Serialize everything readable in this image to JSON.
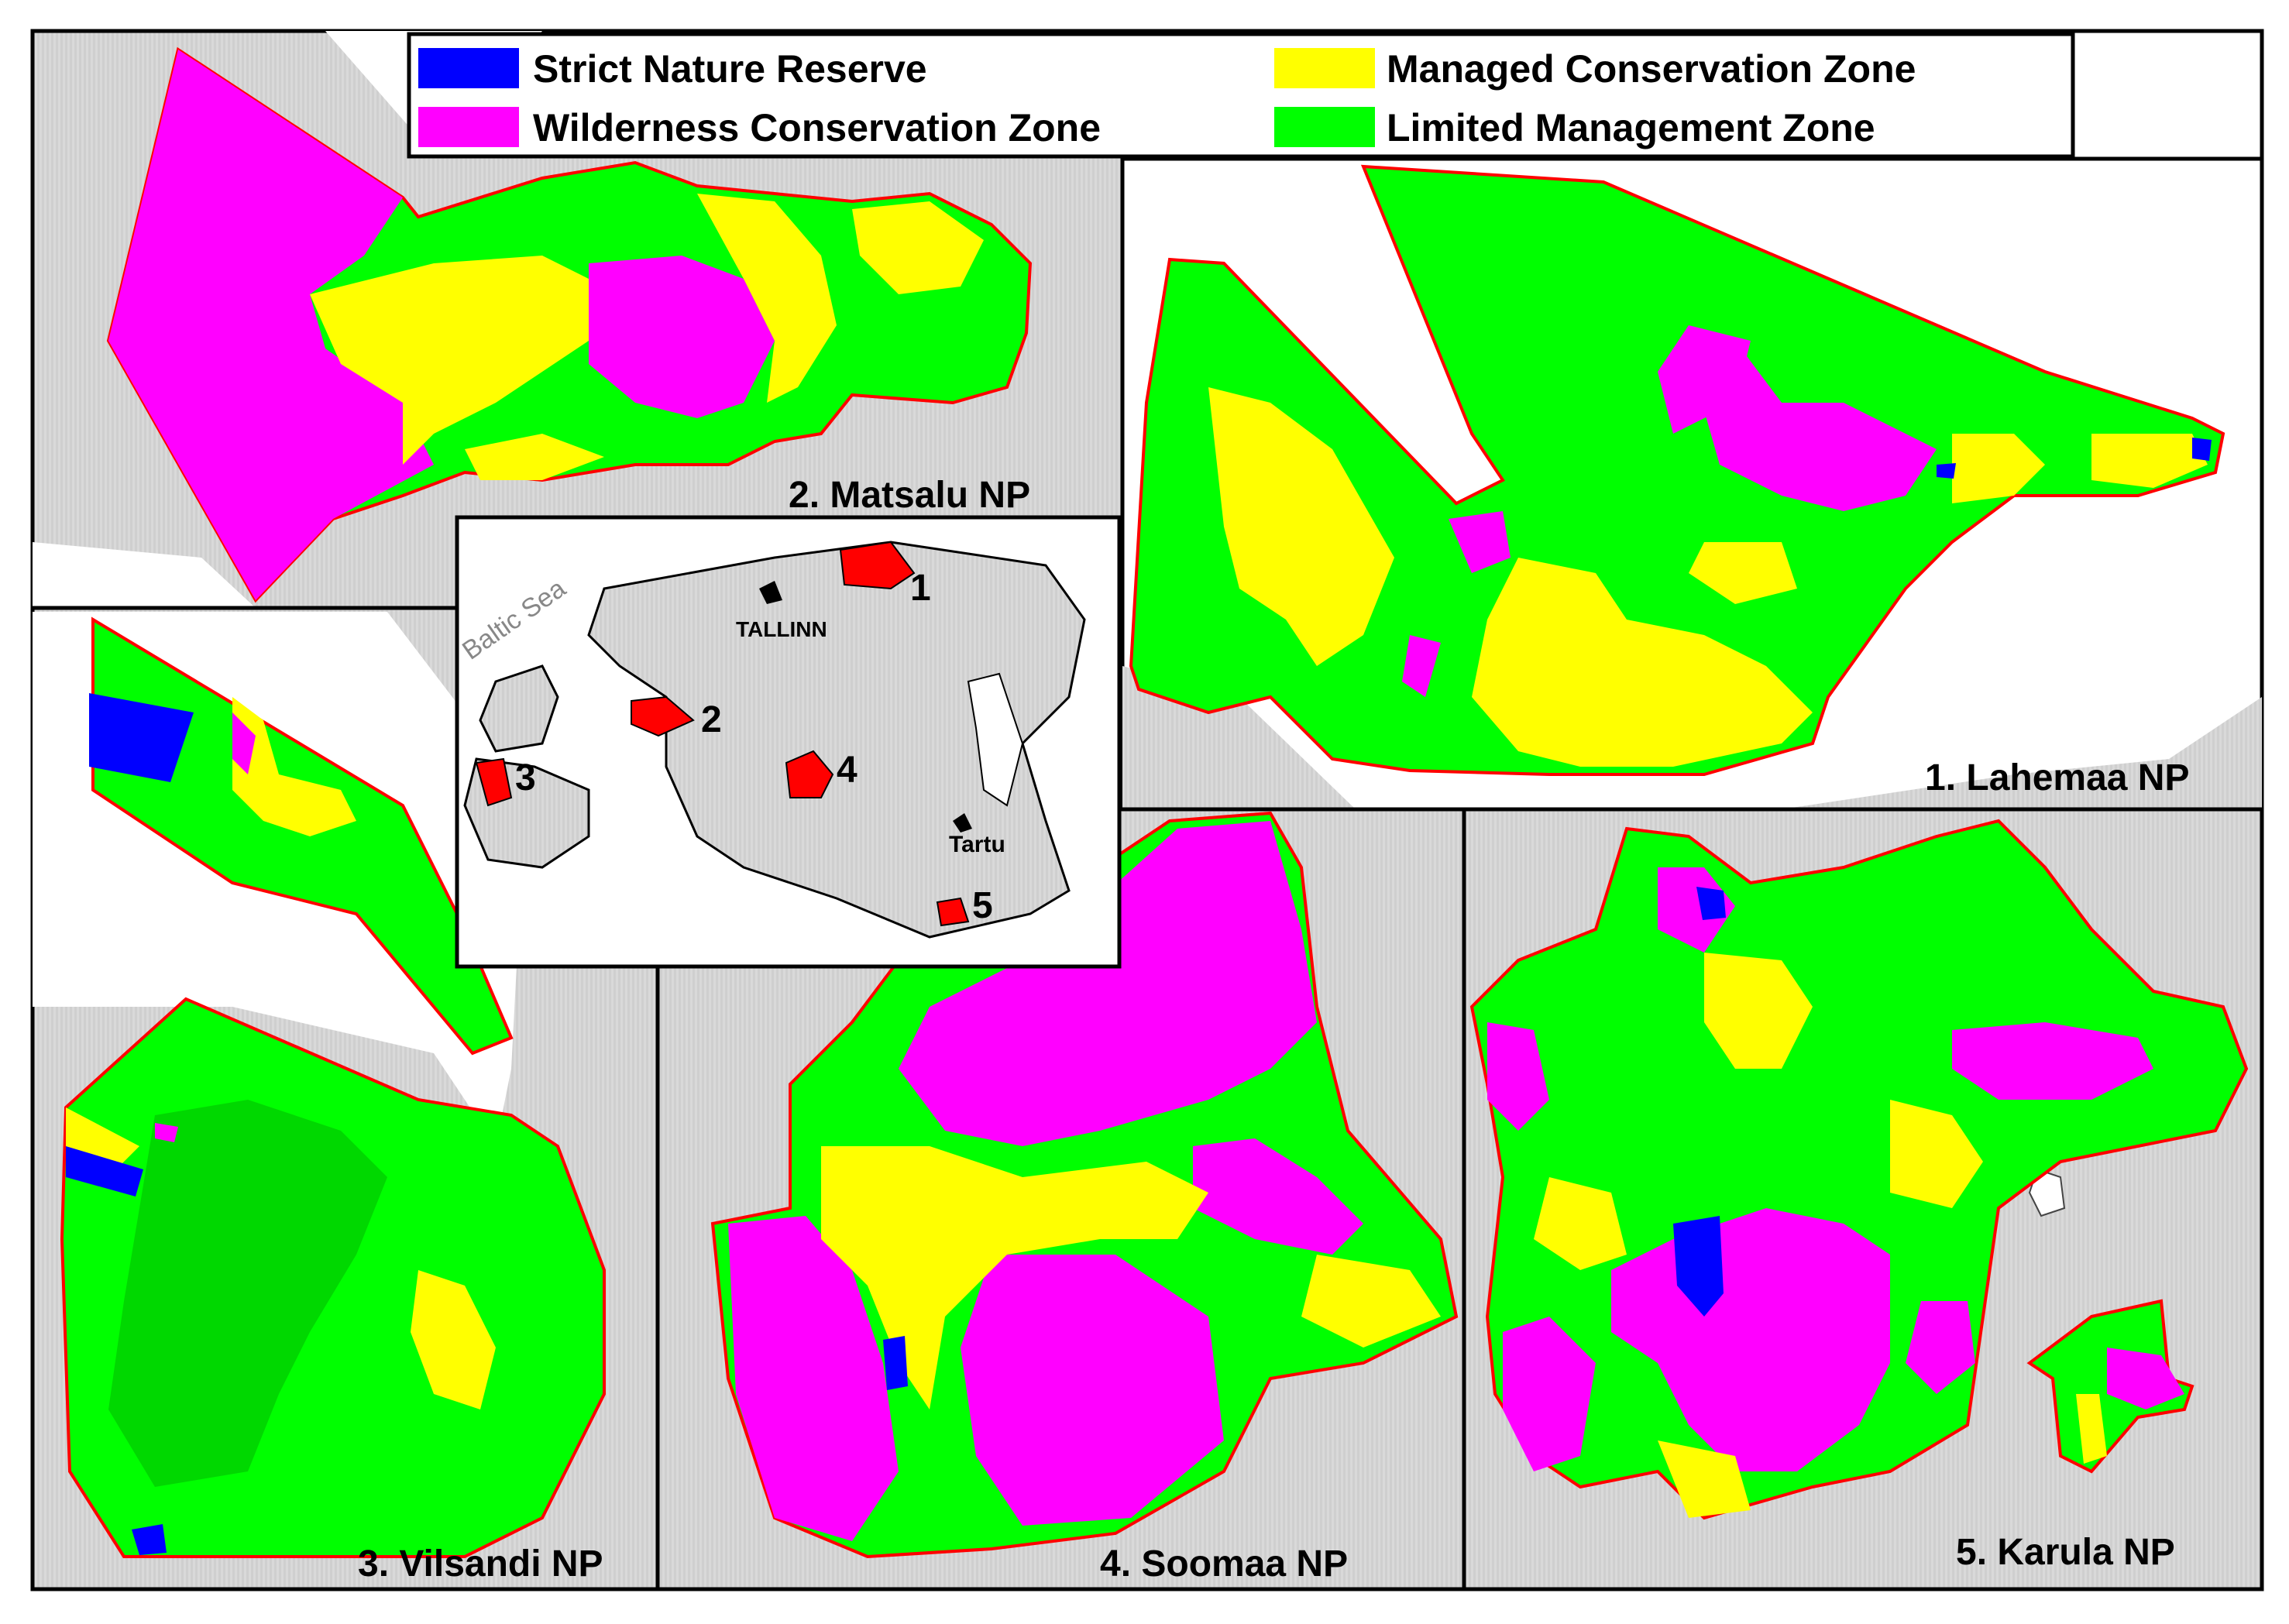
{
  "legend": {
    "items": [
      {
        "label": "Strict Nature Reserve",
        "color": "#0000ff"
      },
      {
        "label": "Wilderness Conservation Zone",
        "color": "#ff00ff"
      },
      {
        "label": "Managed Conservation Zone",
        "color": "#ffff00"
      },
      {
        "label": "Limited Management Zone",
        "color": "#00ff00"
      }
    ]
  },
  "parks": {
    "lahemaa": "1. Lahemaa NP",
    "matsalu": "2. Matsalu NP",
    "vilsandi": "3. Vilsandi NP",
    "soomaa": "4. Soomaa NP",
    "karula": "5. Karula NP"
  },
  "inset": {
    "sea_label": "Baltic Sea",
    "city_capital": "TALLINN",
    "city_tartu": "Tartu",
    "markers": [
      "1",
      "2",
      "3",
      "4",
      "5"
    ]
  },
  "colors": {
    "strict": "#0000ff",
    "wilderness": "#ff00ff",
    "managed": "#ffff00",
    "limited": "#00ff00",
    "boundary": "#ff0000",
    "land": "#c8c8c8",
    "water": "#ffffff"
  }
}
